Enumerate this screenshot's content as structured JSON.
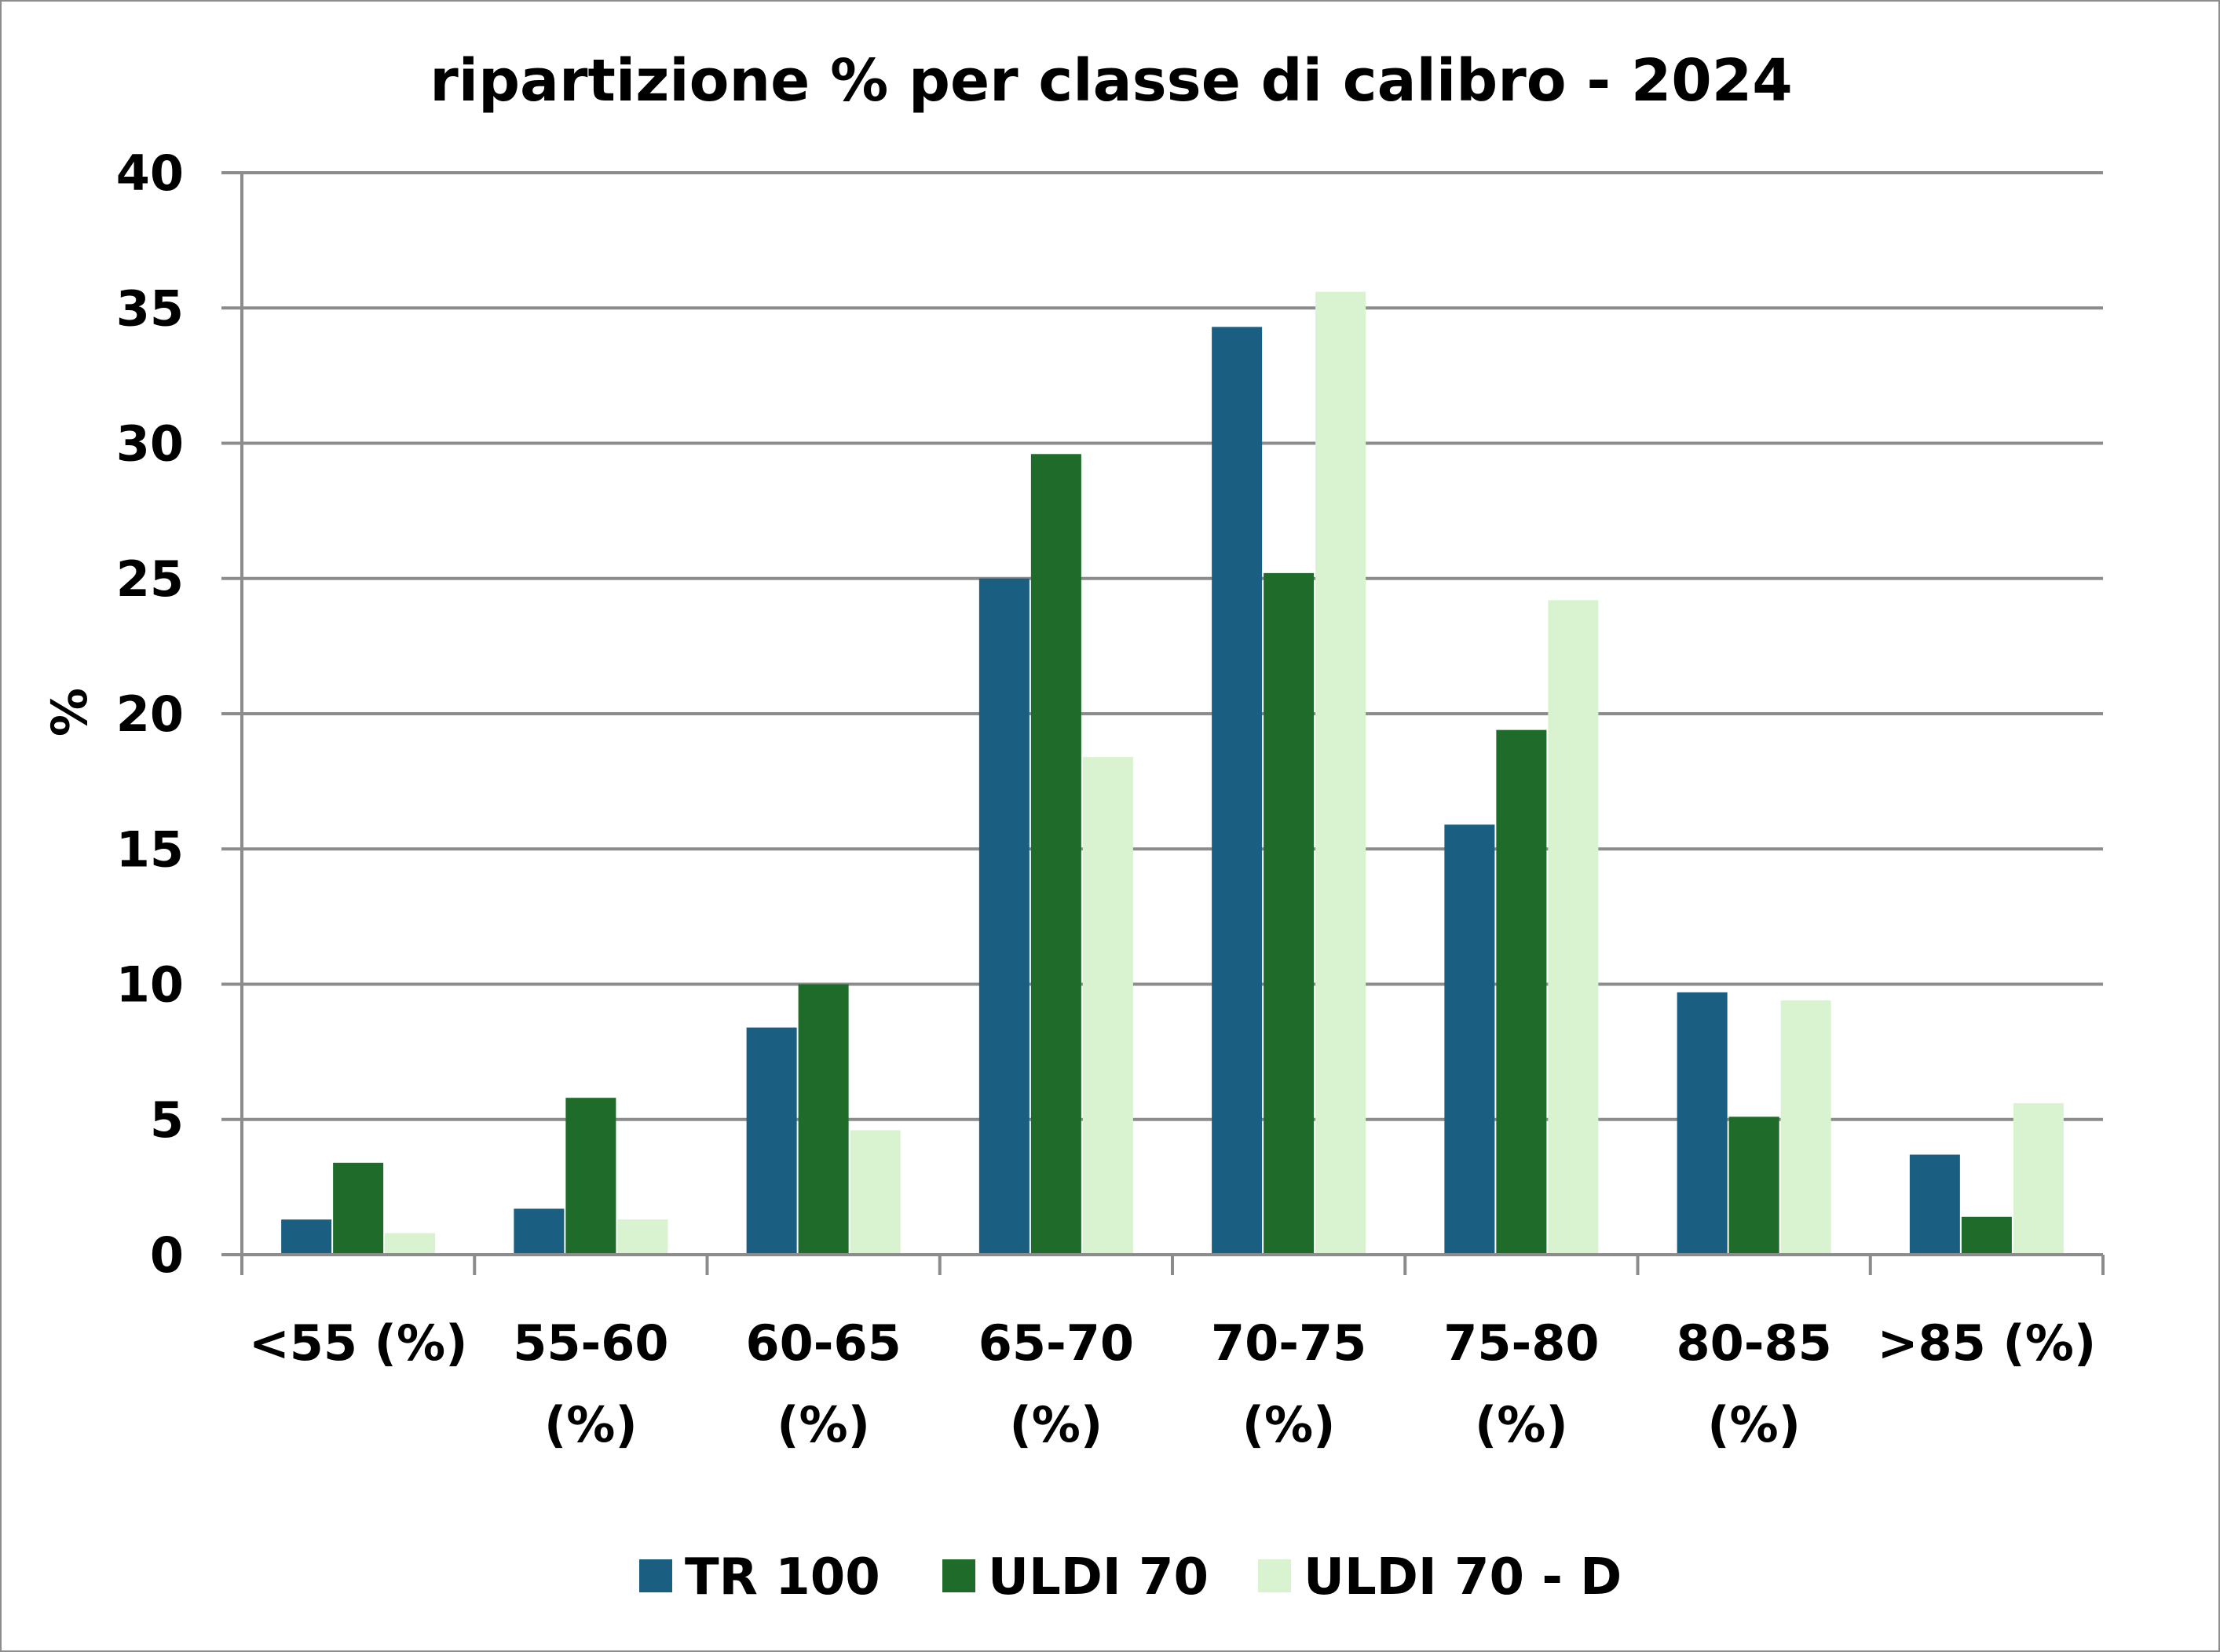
{
  "chart_data": {
    "type": "bar",
    "title": "ripartizione % per classe di calibro - 2024",
    "ylabel": "%",
    "xlabel": "",
    "ylim": [
      0,
      40
    ],
    "yticks": [
      0,
      5,
      10,
      15,
      20,
      25,
      30,
      35,
      40
    ],
    "grid": true,
    "legend_position": "bottom",
    "categories": [
      [
        "<55 (%)"
      ],
      [
        "55-60",
        "(%)"
      ],
      [
        "60-65",
        "(%)"
      ],
      [
        "65-70",
        "(%)"
      ],
      [
        "70-75",
        "(%)"
      ],
      [
        "75-80",
        "(%)"
      ],
      [
        "80-85",
        "(%)"
      ],
      [
        ">85 (%)"
      ]
    ],
    "series": [
      {
        "name": "TR 100",
        "color": "#1a5e82",
        "values": [
          1.3,
          1.7,
          8.4,
          25.0,
          34.3,
          15.9,
          9.7,
          3.7
        ]
      },
      {
        "name": "ULDI 70",
        "color": "#1e6b2a",
        "values": [
          3.4,
          5.8,
          10.0,
          29.6,
          25.2,
          19.4,
          5.1,
          1.4
        ]
      },
      {
        "name": "ULDI 70 - D",
        "color": "#d9f2d0",
        "values": [
          0.8,
          1.3,
          4.6,
          18.4,
          35.6,
          24.2,
          9.4,
          5.6
        ]
      }
    ]
  }
}
